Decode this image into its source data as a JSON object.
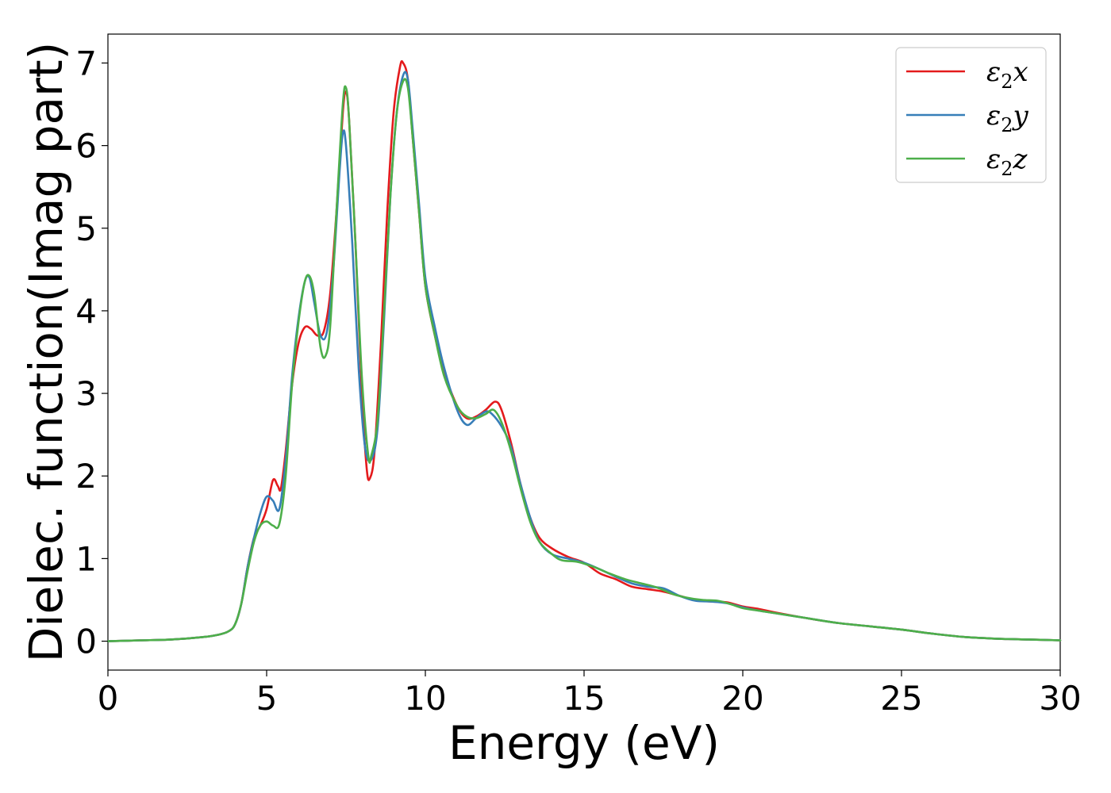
{
  "chart_data": {
    "type": "line",
    "xlabel": "Energy (eV)",
    "ylabel": "Dielec. function(Imag part)",
    "xlim": [
      0,
      30
    ],
    "ylim": [
      -0.35,
      7.35
    ],
    "xticks": [
      0,
      5,
      10,
      15,
      20,
      25,
      30
    ],
    "yticks": [
      0,
      1,
      2,
      3,
      4,
      5,
      6,
      7
    ],
    "grid": false,
    "legend_position": "top-right",
    "series": [
      {
        "name": "ε2x",
        "legend_base": "ε",
        "legend_sub": "2",
        "legend_var": "x",
        "color": "#e41a1c",
        "points": [
          [
            0,
            0.0
          ],
          [
            1,
            0.01
          ],
          [
            2,
            0.02
          ],
          [
            3,
            0.05
          ],
          [
            3.5,
            0.08
          ],
          [
            3.8,
            0.12
          ],
          [
            4.0,
            0.2
          ],
          [
            4.2,
            0.45
          ],
          [
            4.4,
            0.9
          ],
          [
            4.6,
            1.25
          ],
          [
            4.8,
            1.4
          ],
          [
            5.0,
            1.6
          ],
          [
            5.2,
            1.95
          ],
          [
            5.35,
            1.88
          ],
          [
            5.45,
            1.85
          ],
          [
            5.6,
            2.3
          ],
          [
            5.8,
            3.1
          ],
          [
            6.0,
            3.6
          ],
          [
            6.2,
            3.8
          ],
          [
            6.4,
            3.78
          ],
          [
            6.6,
            3.7
          ],
          [
            6.8,
            3.75
          ],
          [
            7.0,
            4.2
          ],
          [
            7.2,
            5.2
          ],
          [
            7.4,
            6.4
          ],
          [
            7.5,
            6.65
          ],
          [
            7.6,
            6.3
          ],
          [
            7.8,
            4.8
          ],
          [
            8.0,
            3.0
          ],
          [
            8.15,
            2.1
          ],
          [
            8.25,
            1.97
          ],
          [
            8.4,
            2.3
          ],
          [
            8.6,
            3.6
          ],
          [
            8.8,
            5.2
          ],
          [
            9.0,
            6.4
          ],
          [
            9.2,
            6.95
          ],
          [
            9.3,
            7.0
          ],
          [
            9.45,
            6.8
          ],
          [
            9.6,
            6.1
          ],
          [
            9.8,
            5.2
          ],
          [
            10.0,
            4.3
          ],
          [
            10.3,
            3.7
          ],
          [
            10.6,
            3.25
          ],
          [
            11.0,
            2.85
          ],
          [
            11.3,
            2.7
          ],
          [
            11.6,
            2.72
          ],
          [
            11.9,
            2.8
          ],
          [
            12.2,
            2.9
          ],
          [
            12.4,
            2.8
          ],
          [
            12.7,
            2.4
          ],
          [
            13.0,
            1.9
          ],
          [
            13.3,
            1.5
          ],
          [
            13.6,
            1.25
          ],
          [
            14.0,
            1.12
          ],
          [
            14.5,
            1.02
          ],
          [
            15.0,
            0.95
          ],
          [
            15.5,
            0.82
          ],
          [
            16.0,
            0.75
          ],
          [
            16.5,
            0.66
          ],
          [
            17.0,
            0.63
          ],
          [
            17.5,
            0.6
          ],
          [
            18.0,
            0.55
          ],
          [
            18.5,
            0.5
          ],
          [
            19.0,
            0.48
          ],
          [
            19.5,
            0.47
          ],
          [
            20.0,
            0.42
          ],
          [
            20.5,
            0.39
          ],
          [
            21.0,
            0.35
          ],
          [
            22.0,
            0.28
          ],
          [
            23.0,
            0.22
          ],
          [
            24.0,
            0.18
          ],
          [
            25.0,
            0.14
          ],
          [
            26.0,
            0.09
          ],
          [
            27.0,
            0.05
          ],
          [
            28.0,
            0.03
          ],
          [
            29.0,
            0.02
          ],
          [
            30.0,
            0.01
          ]
        ]
      },
      {
        "name": "ε2y",
        "legend_base": "ε",
        "legend_sub": "2",
        "legend_var": "y",
        "color": "#377eb8",
        "points": [
          [
            0,
            0.0
          ],
          [
            1,
            0.01
          ],
          [
            2,
            0.02
          ],
          [
            3,
            0.05
          ],
          [
            3.5,
            0.08
          ],
          [
            3.8,
            0.12
          ],
          [
            4.0,
            0.2
          ],
          [
            4.2,
            0.45
          ],
          [
            4.4,
            0.9
          ],
          [
            4.6,
            1.25
          ],
          [
            4.8,
            1.55
          ],
          [
            5.0,
            1.75
          ],
          [
            5.2,
            1.7
          ],
          [
            5.4,
            1.6
          ],
          [
            5.6,
            2.2
          ],
          [
            5.8,
            3.2
          ],
          [
            6.0,
            3.9
          ],
          [
            6.2,
            4.35
          ],
          [
            6.35,
            4.4
          ],
          [
            6.5,
            4.1
          ],
          [
            6.7,
            3.7
          ],
          [
            6.9,
            3.75
          ],
          [
            7.1,
            4.5
          ],
          [
            7.3,
            5.7
          ],
          [
            7.4,
            6.15
          ],
          [
            7.5,
            6.0
          ],
          [
            7.7,
            4.8
          ],
          [
            7.9,
            3.3
          ],
          [
            8.1,
            2.35
          ],
          [
            8.3,
            2.2
          ],
          [
            8.5,
            2.6
          ],
          [
            8.7,
            3.9
          ],
          [
            8.9,
            5.4
          ],
          [
            9.1,
            6.4
          ],
          [
            9.3,
            6.85
          ],
          [
            9.45,
            6.8
          ],
          [
            9.6,
            6.2
          ],
          [
            9.8,
            5.3
          ],
          [
            10.0,
            4.4
          ],
          [
            10.3,
            3.8
          ],
          [
            10.6,
            3.3
          ],
          [
            11.0,
            2.8
          ],
          [
            11.3,
            2.62
          ],
          [
            11.6,
            2.7
          ],
          [
            11.9,
            2.78
          ],
          [
            12.1,
            2.75
          ],
          [
            12.4,
            2.6
          ],
          [
            12.7,
            2.35
          ],
          [
            13.0,
            1.9
          ],
          [
            13.3,
            1.5
          ],
          [
            13.6,
            1.2
          ],
          [
            14.0,
            1.05
          ],
          [
            14.5,
            1.0
          ],
          [
            15.0,
            0.95
          ],
          [
            15.5,
            0.87
          ],
          [
            16.0,
            0.78
          ],
          [
            16.5,
            0.7
          ],
          [
            17.0,
            0.66
          ],
          [
            17.5,
            0.64
          ],
          [
            18.0,
            0.55
          ],
          [
            18.5,
            0.49
          ],
          [
            19.0,
            0.48
          ],
          [
            19.5,
            0.46
          ],
          [
            20.0,
            0.41
          ],
          [
            20.5,
            0.37
          ],
          [
            21.0,
            0.34
          ],
          [
            22.0,
            0.28
          ],
          [
            23.0,
            0.22
          ],
          [
            24.0,
            0.18
          ],
          [
            25.0,
            0.14
          ],
          [
            26.0,
            0.09
          ],
          [
            27.0,
            0.05
          ],
          [
            28.0,
            0.03
          ],
          [
            29.0,
            0.02
          ],
          [
            30.0,
            0.01
          ]
        ]
      },
      {
        "name": "ε2z",
        "legend_base": "ε",
        "legend_sub": "2",
        "legend_var": "z",
        "color": "#4daf4a",
        "points": [
          [
            0,
            0.0
          ],
          [
            1,
            0.01
          ],
          [
            2,
            0.02
          ],
          [
            3,
            0.05
          ],
          [
            3.5,
            0.08
          ],
          [
            3.8,
            0.12
          ],
          [
            4.0,
            0.2
          ],
          [
            4.2,
            0.45
          ],
          [
            4.4,
            0.85
          ],
          [
            4.6,
            1.2
          ],
          [
            4.8,
            1.4
          ],
          [
            5.0,
            1.45
          ],
          [
            5.2,
            1.4
          ],
          [
            5.4,
            1.42
          ],
          [
            5.6,
            2.0
          ],
          [
            5.8,
            3.1
          ],
          [
            6.0,
            3.85
          ],
          [
            6.2,
            4.35
          ],
          [
            6.35,
            4.42
          ],
          [
            6.5,
            4.2
          ],
          [
            6.7,
            3.55
          ],
          [
            6.85,
            3.45
          ],
          [
            7.0,
            3.8
          ],
          [
            7.2,
            5.2
          ],
          [
            7.4,
            6.5
          ],
          [
            7.5,
            6.7
          ],
          [
            7.6,
            6.3
          ],
          [
            7.8,
            4.8
          ],
          [
            8.0,
            3.2
          ],
          [
            8.2,
            2.25
          ],
          [
            8.3,
            2.25
          ],
          [
            8.5,
            2.7
          ],
          [
            8.7,
            4.0
          ],
          [
            8.9,
            5.4
          ],
          [
            9.1,
            6.4
          ],
          [
            9.3,
            6.78
          ],
          [
            9.45,
            6.7
          ],
          [
            9.6,
            6.1
          ],
          [
            9.8,
            5.2
          ],
          [
            10.0,
            4.3
          ],
          [
            10.3,
            3.7
          ],
          [
            10.6,
            3.2
          ],
          [
            11.0,
            2.85
          ],
          [
            11.3,
            2.72
          ],
          [
            11.6,
            2.7
          ],
          [
            11.9,
            2.75
          ],
          [
            12.15,
            2.8
          ],
          [
            12.4,
            2.65
          ],
          [
            12.7,
            2.3
          ],
          [
            13.0,
            1.85
          ],
          [
            13.3,
            1.45
          ],
          [
            13.6,
            1.2
          ],
          [
            14.0,
            1.05
          ],
          [
            14.3,
            0.98
          ],
          [
            14.8,
            0.96
          ],
          [
            15.3,
            0.9
          ],
          [
            15.8,
            0.82
          ],
          [
            16.3,
            0.75
          ],
          [
            16.8,
            0.7
          ],
          [
            17.3,
            0.65
          ],
          [
            17.8,
            0.57
          ],
          [
            18.2,
            0.53
          ],
          [
            18.7,
            0.5
          ],
          [
            19.2,
            0.49
          ],
          [
            19.6,
            0.45
          ],
          [
            20.0,
            0.4
          ],
          [
            20.5,
            0.37
          ],
          [
            21.0,
            0.34
          ],
          [
            22.0,
            0.28
          ],
          [
            23.0,
            0.22
          ],
          [
            24.0,
            0.18
          ],
          [
            25.0,
            0.14
          ],
          [
            26.0,
            0.09
          ],
          [
            27.0,
            0.05
          ],
          [
            28.0,
            0.03
          ],
          [
            29.0,
            0.02
          ],
          [
            30.0,
            0.01
          ]
        ]
      }
    ]
  }
}
